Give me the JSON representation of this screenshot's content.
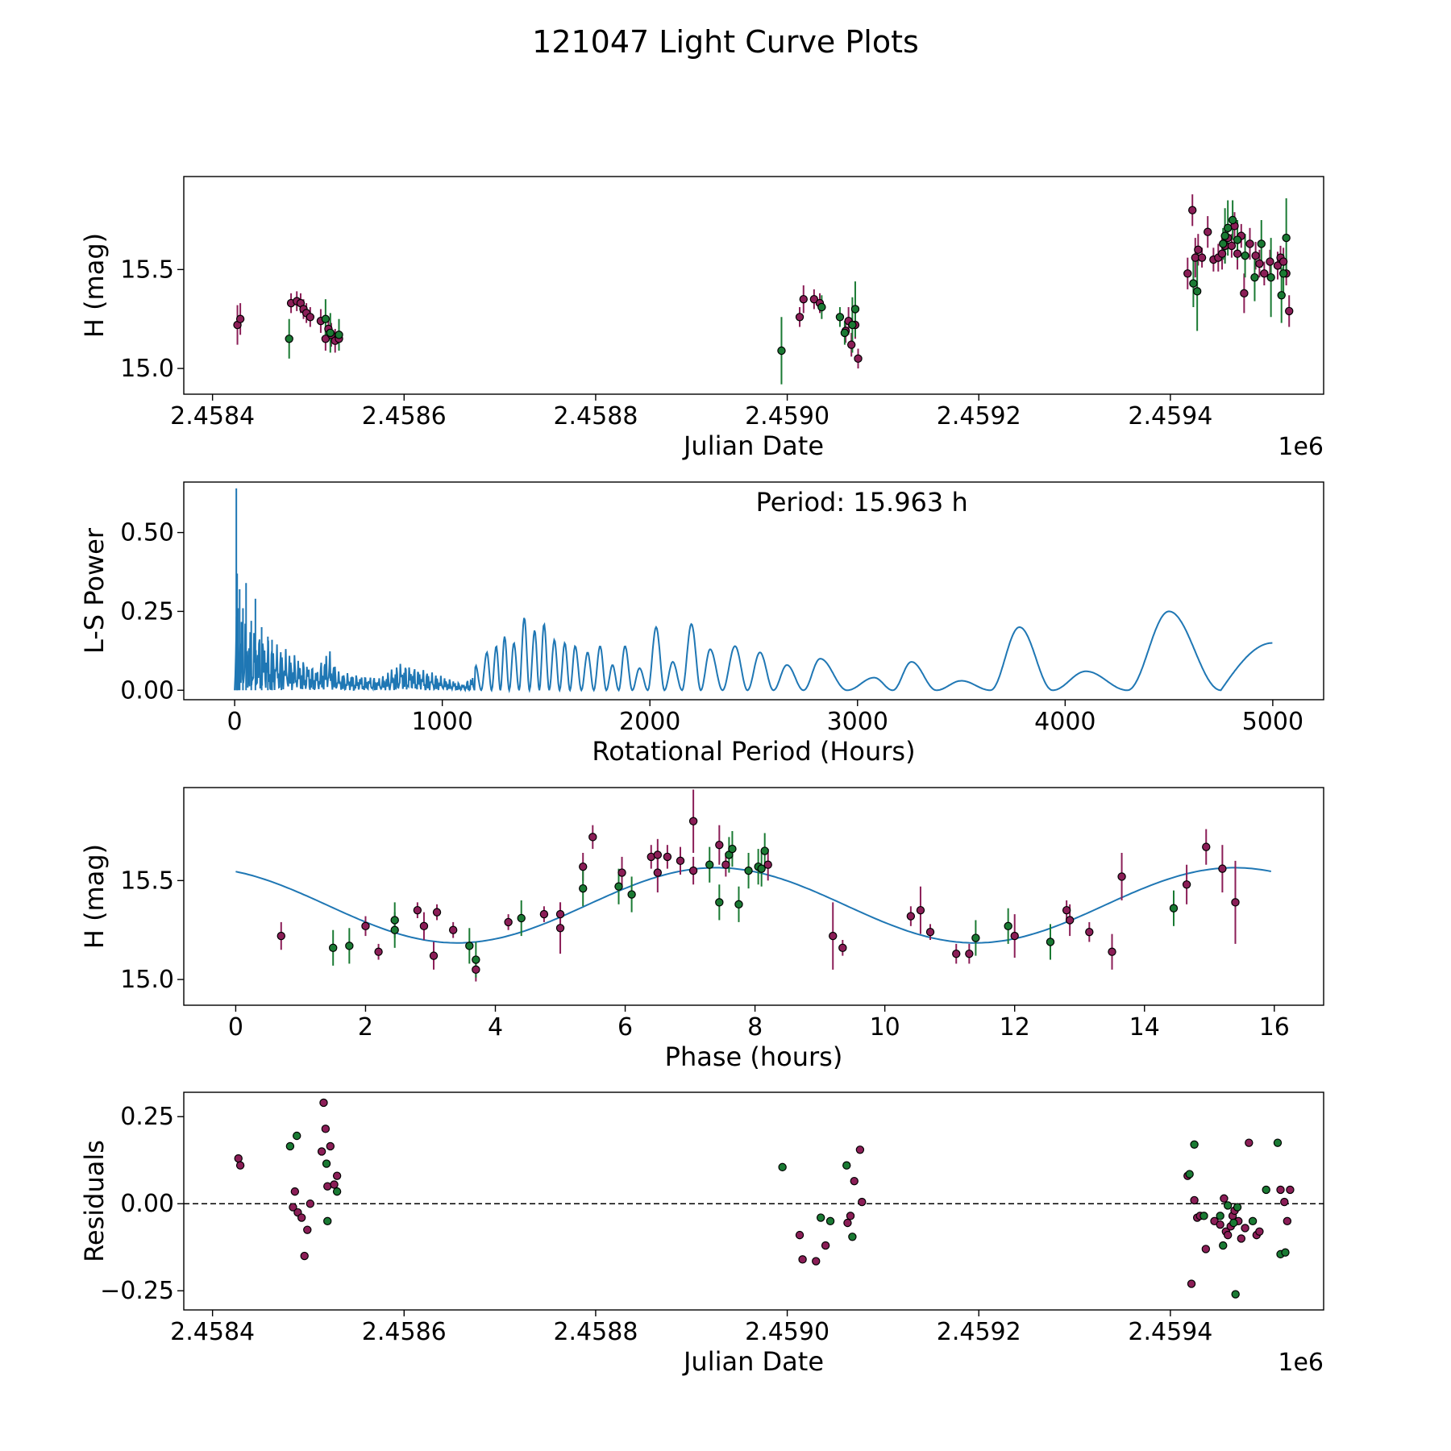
{
  "title": "121047 Light Curve Plots",
  "colors": {
    "magenta": "#8b1e57",
    "green": "#1a7a33",
    "curve": "#1f77b4",
    "edge": "#000000",
    "axes": "#000000"
  },
  "chart_data": [
    {
      "id": "lightcurve",
      "type": "scatter",
      "xlabel": "Julian Date",
      "ylabel": "H (mag)",
      "offset_label": "1e6",
      "xlim": [
        2458370,
        2459560
      ],
      "ylim": [
        14.87,
        15.97
      ],
      "x_ticks": [
        2458400,
        2458600,
        2458800,
        2459000,
        2459200,
        2459400
      ],
      "x_tick_labels": [
        "2.4584",
        "2.4586",
        "2.4588",
        "2.4590",
        "2.4592",
        "2.4594"
      ],
      "y_ticks": [
        15.0,
        15.5
      ],
      "y_tick_labels": [
        "15.0",
        "15.5"
      ],
      "series": [
        {
          "name": "magenta",
          "color": "magenta",
          "x": [
            2458426,
            2458429,
            2458482,
            2458488,
            2458492,
            2458495,
            2458498,
            2458502,
            2458513,
            2458518,
            2458521,
            2458524,
            2458528,
            2458532,
            2459013,
            2459017,
            2459028,
            2459034,
            2459061,
            2459064,
            2459067,
            2459071,
            2459074,
            2459418,
            2459423,
            2459426,
            2459429,
            2459433,
            2459439,
            2459445,
            2459450,
            2459454,
            2459457,
            2459460,
            2459464,
            2459467,
            2459470,
            2459474,
            2459477,
            2459483,
            2459489,
            2459493,
            2459498,
            2459504,
            2459512,
            2459515,
            2459518,
            2459521,
            2459524
          ],
          "y": [
            15.22,
            15.25,
            15.33,
            15.34,
            15.33,
            15.3,
            15.28,
            15.26,
            15.24,
            15.15,
            15.2,
            15.17,
            15.14,
            15.15,
            15.26,
            15.35,
            15.35,
            15.33,
            15.19,
            15.24,
            15.12,
            15.22,
            15.05,
            15.48,
            15.8,
            15.56,
            15.6,
            15.56,
            15.69,
            15.55,
            15.56,
            15.58,
            15.62,
            15.66,
            15.62,
            15.72,
            15.58,
            15.67,
            15.38,
            15.63,
            15.57,
            15.53,
            15.48,
            15.54,
            15.52,
            15.56,
            15.54,
            15.48,
            15.29
          ],
          "err": [
            0.1,
            0.08,
            0.05,
            0.05,
            0.05,
            0.05,
            0.05,
            0.05,
            0.06,
            0.06,
            0.06,
            0.06,
            0.06,
            0.05,
            0.05,
            0.07,
            0.05,
            0.05,
            0.06,
            0.07,
            0.06,
            0.07,
            0.05,
            0.08,
            0.08,
            0.1,
            0.08,
            0.05,
            0.08,
            0.06,
            0.07,
            0.08,
            0.09,
            0.06,
            0.06,
            0.07,
            0.08,
            0.06,
            0.1,
            0.08,
            0.07,
            0.07,
            0.06,
            0.06,
            0.07,
            0.06,
            0.07,
            0.06,
            0.08
          ]
        },
        {
          "name": "green",
          "color": "green",
          "x": [
            2458480,
            2458518,
            2458523,
            2458532,
            2458994,
            2459036,
            2459055,
            2459060,
            2459068,
            2459071,
            2459424,
            2459428,
            2459455,
            2459457,
            2459460,
            2459465,
            2459470,
            2459478,
            2459488,
            2459495,
            2459505,
            2459516,
            2459518,
            2459521
          ],
          "y": [
            15.15,
            15.25,
            15.18,
            15.17,
            15.09,
            15.31,
            15.26,
            15.18,
            15.22,
            15.3,
            15.43,
            15.39,
            15.63,
            15.67,
            15.71,
            15.75,
            15.65,
            15.57,
            15.46,
            15.63,
            15.46,
            15.37,
            15.48,
            15.66
          ],
          "err": [
            0.1,
            0.1,
            0.1,
            0.08,
            0.17,
            0.06,
            0.05,
            0.06,
            0.14,
            0.14,
            0.12,
            0.2,
            0.08,
            0.14,
            0.14,
            0.1,
            0.1,
            0.11,
            0.12,
            0.12,
            0.2,
            0.14,
            0.1,
            0.2
          ]
        }
      ]
    },
    {
      "id": "periodogram",
      "type": "line",
      "annotation": "Period: 15.963 h",
      "xlabel": "Rotational Period (Hours)",
      "ylabel": "L-S Power",
      "xlim": [
        -245,
        5245
      ],
      "ylim": [
        -0.03,
        0.66
      ],
      "x_ticks": [
        0,
        1000,
        2000,
        3000,
        4000,
        5000
      ],
      "x_tick_labels": [
        "0",
        "1000",
        "2000",
        "3000",
        "4000",
        "5000"
      ],
      "y_ticks": [
        0.0,
        0.25,
        0.5
      ],
      "y_tick_labels": [
        "0.00",
        "0.25",
        "0.50"
      ],
      "spikes": {
        "x": [
          8,
          12,
          16,
          24,
          40,
          55,
          80,
          100,
          130,
          160,
          180
        ],
        "y": [
          0.64,
          0.37,
          0.26,
          0.32,
          0.26,
          0.34,
          0.22,
          0.29,
          0.2,
          0.17,
          0.16
        ]
      },
      "envelope": {
        "x": [
          0,
          200,
          400,
          450,
          500,
          700,
          800,
          900,
          1100,
          1200,
          1300,
          1400,
          1500
        ],
        "y": [
          0.25,
          0.15,
          0.07,
          0.14,
          0.06,
          0.04,
          0.09,
          0.07,
          0.02,
          0.08,
          0.12,
          0.2,
          0.22
        ]
      },
      "peaks": {
        "x": [
          1160,
          1215,
          1260,
          1300,
          1345,
          1395,
          1445,
          1490,
          1540,
          1590,
          1640,
          1700,
          1760,
          1820,
          1880,
          1950,
          2030,
          2110,
          2200,
          2290,
          2410,
          2530,
          2660,
          2820,
          3080,
          3260,
          3500,
          3780,
          4100,
          4500
        ],
        "y": [
          0.08,
          0.12,
          0.14,
          0.17,
          0.15,
          0.23,
          0.19,
          0.21,
          0.16,
          0.15,
          0.14,
          0.12,
          0.14,
          0.08,
          0.14,
          0.07,
          0.2,
          0.09,
          0.21,
          0.13,
          0.14,
          0.12,
          0.08,
          0.1,
          0.04,
          0.09,
          0.03,
          0.2,
          0.06,
          0.25
        ]
      },
      "end_point": {
        "x": 5000,
        "y": 0.15
      }
    },
    {
      "id": "phase",
      "type": "scatter",
      "xlabel": "Phase (hours)",
      "ylabel": "H (mag)",
      "xlim": [
        -0.8,
        16.76
      ],
      "ylim": [
        14.87,
        15.97
      ],
      "x_ticks": [
        0,
        2,
        4,
        6,
        8,
        10,
        12,
        14,
        16
      ],
      "x_tick_labels": [
        "0",
        "2",
        "4",
        "6",
        "8",
        "10",
        "12",
        "14",
        "16"
      ],
      "y_ticks": [
        15.0,
        15.5
      ],
      "y_tick_labels": [
        "15.0",
        "15.5"
      ],
      "fit": {
        "period": 15.963,
        "mean": 15.375,
        "amp": 0.19,
        "peak_phase": 7.4
      },
      "series": [
        {
          "name": "magenta",
          "color": "magenta",
          "x": [
            0.7,
            2.0,
            2.2,
            2.8,
            2.9,
            3.05,
            3.1,
            3.35,
            3.7,
            4.2,
            4.75,
            5.0,
            5.0,
            5.35,
            5.5,
            5.95,
            6.4,
            6.5,
            6.5,
            6.65,
            6.85,
            7.05,
            7.05,
            7.45,
            7.55,
            8.2,
            9.2,
            9.35,
            10.4,
            10.55,
            10.7,
            11.1,
            11.3,
            12.0,
            12.8,
            12.85,
            13.15,
            13.5,
            13.65,
            14.65,
            14.95,
            15.2,
            15.4
          ],
          "y": [
            15.22,
            15.27,
            15.14,
            15.35,
            15.27,
            15.12,
            15.34,
            15.25,
            15.05,
            15.29,
            15.33,
            15.33,
            15.26,
            15.57,
            15.72,
            15.54,
            15.62,
            15.54,
            15.63,
            15.62,
            15.6,
            15.8,
            15.55,
            15.68,
            15.58,
            15.58,
            15.22,
            15.16,
            15.32,
            15.35,
            15.24,
            15.13,
            15.13,
            15.22,
            15.35,
            15.3,
            15.24,
            15.14,
            15.52,
            15.48,
            15.67,
            15.56,
            15.39
          ],
          "err": [
            0.07,
            0.05,
            0.04,
            0.04,
            0.07,
            0.07,
            0.04,
            0.04,
            0.06,
            0.04,
            0.04,
            0.06,
            0.13,
            0.07,
            0.06,
            0.08,
            0.06,
            0.1,
            0.08,
            0.06,
            0.07,
            0.16,
            0.07,
            0.1,
            0.06,
            0.08,
            0.17,
            0.04,
            0.05,
            0.12,
            0.04,
            0.05,
            0.05,
            0.11,
            0.05,
            0.08,
            0.05,
            0.09,
            0.12,
            0.1,
            0.09,
            0.12,
            0.21
          ]
        },
        {
          "name": "green",
          "color": "green",
          "x": [
            1.5,
            1.75,
            2.45,
            2.45,
            3.6,
            3.7,
            4.4,
            5.35,
            5.9,
            6.1,
            7.3,
            7.45,
            7.6,
            7.65,
            7.75,
            7.9,
            8.05,
            8.1,
            8.15,
            11.4,
            11.9,
            12.55,
            14.45
          ],
          "y": [
            15.16,
            15.17,
            15.25,
            15.3,
            15.17,
            15.1,
            15.31,
            15.46,
            15.47,
            15.43,
            15.58,
            15.39,
            15.63,
            15.66,
            15.38,
            15.55,
            15.57,
            15.56,
            15.65,
            15.21,
            15.27,
            15.19,
            15.36
          ]
        }
      ]
    },
    {
      "id": "residuals",
      "type": "scatter",
      "xlabel": "Julian Date",
      "ylabel": "Residuals",
      "offset_label": "1e6",
      "xlim": [
        2458370,
        2459560
      ],
      "ylim": [
        -0.305,
        0.32
      ],
      "x_ticks": [
        2458400,
        2458600,
        2458800,
        2459000,
        2459200,
        2459400
      ],
      "x_tick_labels": [
        "2.4584",
        "2.4586",
        "2.4588",
        "2.4590",
        "2.4592",
        "2.4594"
      ],
      "y_ticks": [
        -0.25,
        0.0,
        0.25
      ],
      "y_tick_labels": [
        "−0.25",
        "0.00",
        "0.25"
      ],
      "zero_line": true,
      "series": [
        {
          "name": "magenta",
          "color": "magenta",
          "x": [
            2458427,
            2458429,
            2458484,
            2458486,
            2458489,
            2458493,
            2458496,
            2458499,
            2458502,
            2458514,
            2458516,
            2458518,
            2458520,
            2458523,
            2458527,
            2458530,
            2459013,
            2459016,
            2459030,
            2459040,
            2459063,
            2459066,
            2459070,
            2459076,
            2459078,
            2459418,
            2459422,
            2459425,
            2459428,
            2459431,
            2459437,
            2459446,
            2459452,
            2459456,
            2459458,
            2459460,
            2459463,
            2459465,
            2459467,
            2459471,
            2459474,
            2459478,
            2459482,
            2459490,
            2459493,
            2459515,
            2459519,
            2459522,
            2459525
          ],
          "y": [
            0.13,
            0.11,
            -0.01,
            0.035,
            -0.025,
            -0.04,
            -0.15,
            -0.075,
            0.0,
            0.15,
            0.29,
            0.215,
            0.05,
            0.165,
            0.055,
            0.08,
            -0.09,
            -0.16,
            -0.165,
            -0.12,
            -0.055,
            -0.035,
            0.065,
            0.155,
            0.005,
            0.08,
            -0.23,
            0.01,
            -0.04,
            -0.035,
            -0.13,
            -0.05,
            -0.06,
            0.015,
            -0.08,
            -0.09,
            -0.065,
            -0.035,
            -0.02,
            -0.05,
            -0.1,
            -0.07,
            0.175,
            -0.09,
            -0.08,
            0.04,
            0.005,
            -0.05,
            0.04
          ]
        },
        {
          "name": "green",
          "color": "green",
          "x": [
            2458481,
            2458488,
            2458519,
            2458520,
            2458530,
            2458995,
            2459035,
            2459045,
            2459062,
            2459068,
            2459420,
            2459425,
            2459435,
            2459452,
            2459455,
            2459460,
            2459466,
            2459468,
            2459470,
            2459486,
            2459500,
            2459512,
            2459515,
            2459520
          ],
          "y": [
            0.165,
            0.195,
            0.115,
            -0.05,
            0.035,
            0.105,
            -0.04,
            -0.05,
            0.11,
            -0.095,
            0.085,
            0.17,
            -0.035,
            -0.035,
            -0.12,
            -0.005,
            -0.055,
            -0.26,
            -0.01,
            -0.05,
            0.04,
            0.175,
            -0.145,
            -0.14
          ]
        }
      ]
    }
  ]
}
